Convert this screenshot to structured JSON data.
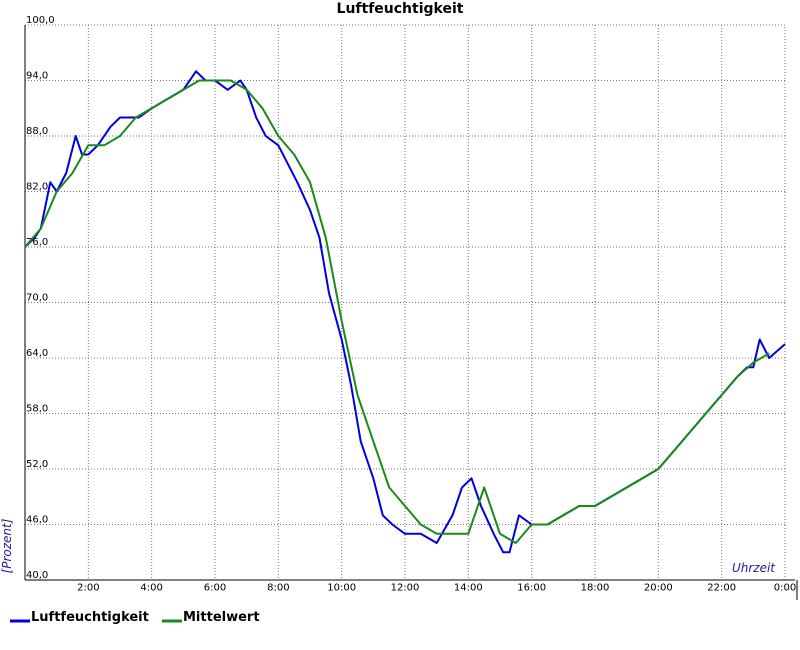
{
  "chart_data": {
    "type": "line",
    "title": "Luftfeuchtigkeit",
    "xlabel": "Uhrzeit",
    "ylabel": "[Prozent]",
    "xlim": [
      0,
      24
    ],
    "ylim": [
      40,
      100
    ],
    "x_ticks": [
      0,
      2,
      4,
      6,
      8,
      10,
      12,
      14,
      16,
      18,
      20,
      22,
      24
    ],
    "x_tick_labels": [
      "",
      "2:00",
      "4:00",
      "6:00",
      "8:00",
      "10:00",
      "12:00",
      "14:00",
      "16:00",
      "18:00",
      "20:00",
      "22:00",
      "0:00"
    ],
    "y_ticks": [
      40,
      46,
      52,
      58,
      64,
      70,
      76,
      82,
      88,
      94,
      100
    ],
    "y_tick_labels": [
      "40,0",
      "46,0",
      "52,0",
      "58,0",
      "64,0",
      "70,0",
      "76,0",
      "82,0",
      "88,0",
      "94,0",
      "100,0"
    ],
    "grid": true,
    "legend_position": "bottom-left",
    "series": [
      {
        "name": "Luftfeuchtigkeit",
        "color": "#0000e0",
        "x": [
          0,
          0.3,
          0.5,
          0.8,
          1.0,
          1.3,
          1.6,
          1.8,
          2.0,
          2.3,
          2.7,
          3.0,
          3.3,
          3.6,
          4.0,
          4.5,
          5.0,
          5.4,
          5.7,
          6.0,
          6.4,
          6.8,
          7.0,
          7.3,
          7.6,
          8.0,
          8.3,
          8.6,
          9.0,
          9.3,
          9.6,
          10.0,
          10.3,
          10.6,
          11.0,
          11.3,
          11.6,
          12.0,
          12.5,
          13.0,
          13.5,
          13.8,
          14.1,
          14.4,
          14.8,
          15.1,
          15.3,
          15.6,
          16.0,
          16.5,
          17.0,
          17.5,
          18.0,
          18.5,
          19.0,
          19.5,
          20.0,
          20.5,
          21.0,
          21.5,
          22.0,
          22.5,
          22.8,
          23.0,
          23.2,
          23.5,
          24.0
        ],
        "y": [
          76,
          77,
          78,
          83,
          82,
          84,
          88,
          86,
          86,
          87,
          89,
          90,
          90,
          90,
          91,
          92,
          93,
          95,
          94,
          94,
          93,
          94,
          93,
          90,
          88,
          87,
          85,
          83,
          80,
          77,
          71,
          66,
          61,
          55,
          51,
          47,
          46,
          45,
          45,
          44,
          47,
          50,
          51,
          48,
          45,
          43,
          43,
          47,
          46,
          46,
          47,
          48,
          48,
          49,
          50,
          51,
          52,
          54,
          56,
          58,
          60,
          62,
          63,
          63,
          66,
          64,
          65.5
        ]
      },
      {
        "name": "Mittelwert",
        "color": "#1a8a1a",
        "x": [
          0,
          0.5,
          1.0,
          1.5,
          2.0,
          2.5,
          3.0,
          3.5,
          4.0,
          4.5,
          5.0,
          5.5,
          6.0,
          6.5,
          7.0,
          7.5,
          8.0,
          8.5,
          9.0,
          9.5,
          10.0,
          10.5,
          11.0,
          11.5,
          12.0,
          12.5,
          13.0,
          13.5,
          14.0,
          14.5,
          15.0,
          15.5,
          16.0,
          16.5,
          17.0,
          17.5,
          18.0,
          18.5,
          19.0,
          19.5,
          20.0,
          20.5,
          21.0,
          21.5,
          22.0,
          22.5,
          23.0,
          23.5
        ],
        "y": [
          76,
          78,
          82,
          84,
          87,
          87,
          88,
          90,
          91,
          92,
          93,
          94,
          94,
          94,
          93,
          91,
          88,
          86,
          83,
          77,
          68,
          60,
          55,
          50,
          48,
          46,
          45,
          45,
          45,
          50,
          45,
          44,
          46,
          46,
          47,
          48,
          48,
          49,
          50,
          51,
          52,
          54,
          56,
          58,
          60,
          62,
          63.5,
          64.5
        ]
      }
    ]
  }
}
